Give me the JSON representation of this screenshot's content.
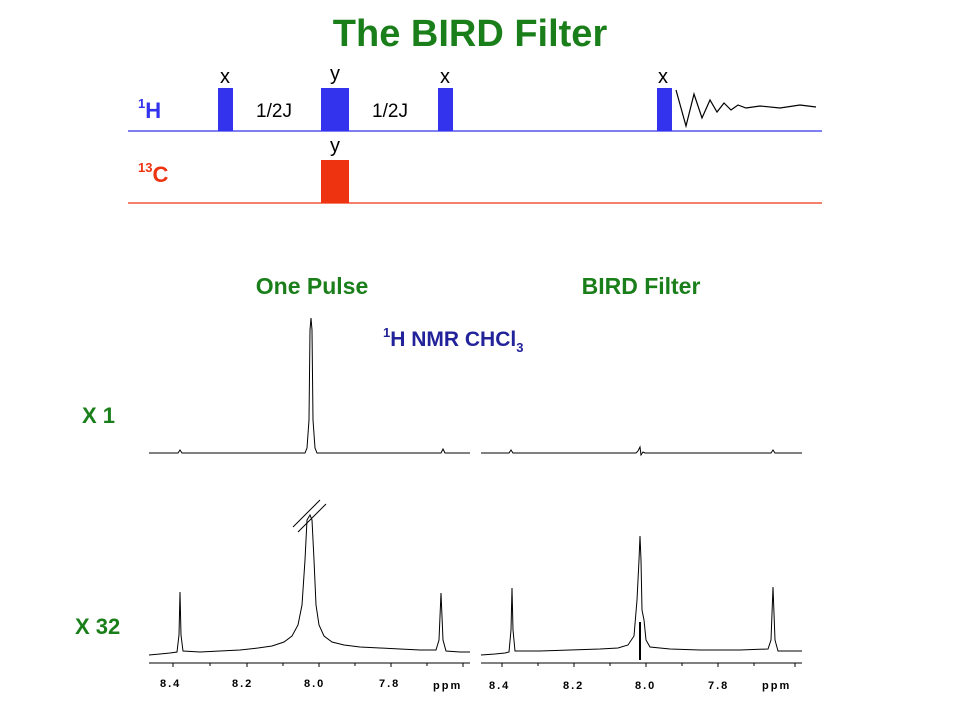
{
  "slide": {
    "title": "The BIRD Filter",
    "colors": {
      "title": "#1a7f1a",
      "proton": "#3333ee",
      "carbon": "#ee3311",
      "label_blue": "#22229a",
      "spectrum": "#000000"
    }
  },
  "pulse_sequence": {
    "h_channel": {
      "mass": "1",
      "element": "H"
    },
    "c_channel": {
      "mass": "13",
      "element": "C"
    },
    "pulse_phases": {
      "h1": "x",
      "h2": "y",
      "h3": "x",
      "h4": "x",
      "c1": "y"
    },
    "delay_labels": [
      "1/2J",
      "1/2J"
    ]
  },
  "spectra": {
    "header_left": "One Pulse",
    "header_right": "BIRD Filter",
    "sample_label": {
      "mass": "1",
      "text": "H NMR CHCl",
      "subscript": "3"
    },
    "row_labels": [
      "X 1",
      "X 32"
    ],
    "axis": {
      "ticks": [
        "8.4",
        "8.2",
        "8.0",
        "7.8"
      ],
      "unit": "ppm"
    }
  }
}
